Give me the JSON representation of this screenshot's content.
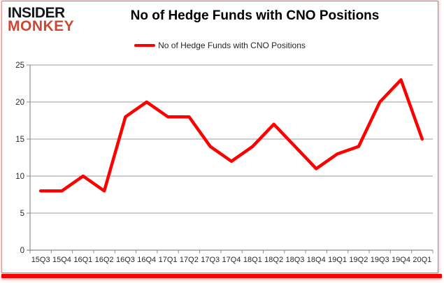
{
  "logo": {
    "line1": "INSIDER",
    "line2": "MONKEY"
  },
  "title": "No of Hedge Funds with CNO Positions",
  "legend": {
    "label": "No of Hedge Funds with CNO Positions"
  },
  "colors": {
    "line": "#ff0000",
    "grid": "#9b9b9b",
    "axis": "#8c8c8c",
    "tick_label": "#2a2a2a",
    "accent": "#ff0000",
    "logo_top": "#161616",
    "logo_bottom": "#cf4632"
  },
  "chart_data": {
    "type": "line",
    "categories": [
      "15Q3",
      "15Q4",
      "16Q1",
      "16Q2",
      "16Q3",
      "16Q4",
      "17Q1",
      "17Q2",
      "17Q3",
      "17Q4",
      "18Q1",
      "18Q2",
      "18Q3",
      "18Q4",
      "19Q1",
      "19Q2",
      "19Q3",
      "19Q4",
      "20Q1"
    ],
    "series": [
      {
        "name": "No of Hedge Funds with CNO Positions",
        "values": [
          8,
          8,
          10,
          8,
          18,
          20,
          18,
          18,
          14,
          12,
          14,
          17,
          14,
          11,
          13,
          14,
          20,
          23,
          15
        ]
      }
    ],
    "title": "No of Hedge Funds with CNO Positions",
    "xlabel": "",
    "ylabel": "",
    "ylim": [
      0,
      25
    ],
    "yticks": [
      0,
      5,
      10,
      15,
      20,
      25
    ],
    "grid": true,
    "legend_position": "top-center"
  }
}
